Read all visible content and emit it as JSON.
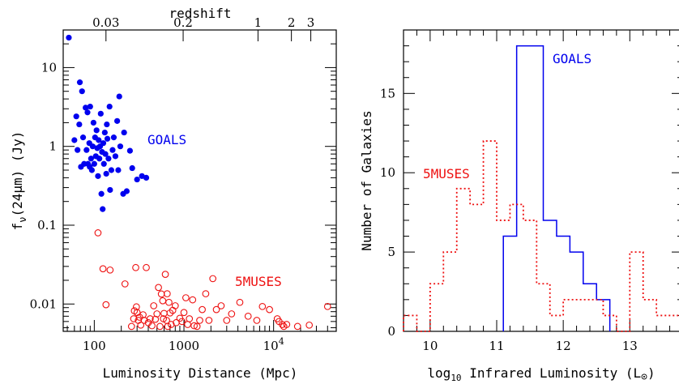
{
  "colors": {
    "goals": "#0000ee",
    "muses": "#ee1111",
    "axis": "#000000"
  },
  "chart_data": [
    {
      "type": "scatter",
      "xlabel": "Luminosity Distance (Mpc)",
      "ylabel": "fν(24μm) (Jy)",
      "ylabel_main": "f",
      "ylabel_sub": "ν",
      "ylabel_rest": "(24μm) (Jy)",
      "toplabel": "redshift",
      "xscale": "log",
      "yscale": "log",
      "xlim": [
        45,
        50000
      ],
      "ylim": [
        0.0045,
        30
      ],
      "x_ticks": [
        {
          "value": 100,
          "label": "100"
        },
        {
          "value": 1000,
          "label": "1000"
        },
        {
          "value": 10000,
          "label": "10",
          "exp": "4"
        }
      ],
      "y_ticks": [
        {
          "value": 0.01,
          "label": "0.01"
        },
        {
          "value": 0.1,
          "label": "0.1"
        },
        {
          "value": 1,
          "label": "1"
        },
        {
          "value": 10,
          "label": "10"
        }
      ],
      "top_ticks": [
        {
          "label": "0.03",
          "distance": 135
        },
        {
          "label": "0.2",
          "distance": 980
        },
        {
          "label": "1",
          "distance": 6700
        },
        {
          "label": "2",
          "distance": 15800
        },
        {
          "label": "3",
          "distance": 26000
        }
      ],
      "series": [
        {
          "name": "GOALS",
          "marker": "filled",
          "points": [
            [
              52,
              24
            ],
            [
              60,
              1.2
            ],
            [
              63,
              2.4
            ],
            [
              65,
              0.9
            ],
            [
              68,
              1.9
            ],
            [
              69,
              6.5
            ],
            [
              71,
              0.55
            ],
            [
              73,
              5.0
            ],
            [
              75,
              1.3
            ],
            [
              77,
              0.6
            ],
            [
              80,
              3.1
            ],
            [
              82,
              0.9
            ],
            [
              84,
              2.7
            ],
            [
              85,
              0.6
            ],
            [
              88,
              1.1
            ],
            [
              89,
              0.55
            ],
            [
              90,
              3.2
            ],
            [
              92,
              0.7
            ],
            [
              94,
              0.5
            ],
            [
              96,
              1.0
            ],
            [
              98,
              2.0
            ],
            [
              100,
              0.6
            ],
            [
              102,
              1.3
            ],
            [
              104,
              0.75
            ],
            [
              106,
              1.6
            ],
            [
              108,
              0.95
            ],
            [
              110,
              0.42
            ],
            [
              112,
              1.2
            ],
            [
              114,
              0.7
            ],
            [
              116,
              1.0
            ],
            [
              118,
              2.6
            ],
            [
              120,
              0.25
            ],
            [
              122,
              0.85
            ],
            [
              124,
              0.16
            ],
            [
              126,
              1.1
            ],
            [
              128,
              0.6
            ],
            [
              131,
              1.5
            ],
            [
              133,
              0.8
            ],
            [
              136,
              0.45
            ],
            [
              138,
              1.9
            ],
            [
              140,
              1.25
            ],
            [
              144,
              0.7
            ],
            [
              148,
              3.2
            ],
            [
              150,
              0.28
            ],
            [
              155,
              0.5
            ],
            [
              160,
              0.9
            ],
            [
              165,
              1.3
            ],
            [
              172,
              0.75
            ],
            [
              180,
              2.1
            ],
            [
              185,
              0.5
            ],
            [
              190,
              4.3
            ],
            [
              195,
              1.0
            ],
            [
              210,
              0.25
            ],
            [
              215,
              1.5
            ],
            [
              230,
              0.27
            ],
            [
              250,
              0.88
            ],
            [
              265,
              0.53
            ],
            [
              300,
              0.38
            ],
            [
              340,
              0.42
            ],
            [
              380,
              0.4
            ]
          ]
        },
        {
          "name": "5MUSES",
          "marker": "open",
          "points": [
            [
              110,
              0.08
            ],
            [
              125,
              0.028
            ],
            [
              135,
              0.0098
            ],
            [
              150,
              0.027
            ],
            [
              220,
              0.018
            ],
            [
              260,
              0.0052
            ],
            [
              275,
              0.0065
            ],
            [
              280,
              0.0082
            ],
            [
              290,
              0.029
            ],
            [
              295,
              0.0092
            ],
            [
              300,
              0.0078
            ],
            [
              310,
              0.0062
            ],
            [
              320,
              0.0068
            ],
            [
              330,
              0.0054
            ],
            [
              350,
              0.0073
            ],
            [
              360,
              0.0062
            ],
            [
              380,
              0.029
            ],
            [
              400,
              0.0058
            ],
            [
              420,
              0.0065
            ],
            [
              440,
              0.0053
            ],
            [
              460,
              0.0095
            ],
            [
              480,
              0.0064
            ],
            [
              500,
              0.0075
            ],
            [
              520,
              0.0162
            ],
            [
              540,
              0.0052
            ],
            [
              560,
              0.0134
            ],
            [
              580,
              0.011
            ],
            [
              590,
              0.0065
            ],
            [
              600,
              0.0076
            ],
            [
              620,
              0.0238
            ],
            [
              640,
              0.0062
            ],
            [
              650,
              0.0135
            ],
            [
              660,
              0.0052
            ],
            [
              680,
              0.0105
            ],
            [
              700,
              0.0077
            ],
            [
              720,
              0.0055
            ],
            [
              750,
              0.0083
            ],
            [
              800,
              0.0095
            ],
            [
              820,
              0.0058
            ],
            [
              900,
              0.0066
            ],
            [
              950,
              0.006
            ],
            [
              1000,
              0.0078
            ],
            [
              1050,
              0.012
            ],
            [
              1100,
              0.0055
            ],
            [
              1150,
              0.0065
            ],
            [
              1250,
              0.0113
            ],
            [
              1300,
              0.0053
            ],
            [
              1400,
              0.0052
            ],
            [
              1500,
              0.0062
            ],
            [
              1600,
              0.0085
            ],
            [
              1750,
              0.0135
            ],
            [
              1900,
              0.0062
            ],
            [
              2100,
              0.021
            ],
            [
              2300,
              0.0085
            ],
            [
              2600,
              0.0095
            ],
            [
              3000,
              0.0062
            ],
            [
              3400,
              0.0075
            ],
            [
              4200,
              0.0105
            ],
            [
              5200,
              0.007
            ],
            [
              6500,
              0.0062
            ],
            [
              7500,
              0.0093
            ],
            [
              9000,
              0.0085
            ],
            [
              11000,
              0.0065
            ],
            [
              11500,
              0.006
            ],
            [
              12500,
              0.0055
            ],
            [
              13000,
              0.0052
            ],
            [
              14000,
              0.0055
            ],
            [
              18500,
              0.0052
            ],
            [
              25000,
              0.0054
            ],
            [
              40000,
              0.0093
            ]
          ]
        }
      ],
      "annotations": [
        {
          "text": "GOALS",
          "series": "GOALS"
        },
        {
          "text": "5MUSES",
          "series": "5MUSES"
        }
      ]
    },
    {
      "type": "histogram",
      "xlabel": "log10 Infrared Luminosity (L⊙)",
      "xlabel_pre": "log",
      "xlabel_sub": "10",
      "xlabel_mid": " Infrared Luminosity (L",
      "xlabel_sym": "⊙",
      "xlabel_post": ")",
      "ylabel": "Number of Galaxies",
      "xlim": [
        9.6,
        13.8
      ],
      "ylim": [
        0,
        19
      ],
      "x_ticks": [
        {
          "value": 10,
          "label": "10"
        },
        {
          "value": 11,
          "label": "11"
        },
        {
          "value": 12,
          "label": "12"
        },
        {
          "value": 13,
          "label": "13"
        }
      ],
      "y_ticks": [
        {
          "value": 0,
          "label": "0"
        },
        {
          "value": 5,
          "label": "5"
        },
        {
          "value": 10,
          "label": "10"
        },
        {
          "value": 15,
          "label": "15"
        }
      ],
      "bin_width": 0.2,
      "series": [
        {
          "name": "GOALS",
          "style": "solid",
          "bins": [
            {
              "left": 11.1,
              "count": 6
            },
            {
              "left": 11.3,
              "count": 18
            },
            {
              "left": 11.5,
              "count": 18
            },
            {
              "left": 11.7,
              "count": 7
            },
            {
              "left": 11.9,
              "count": 6
            },
            {
              "left": 12.1,
              "count": 5
            },
            {
              "left": 12.3,
              "count": 3
            },
            {
              "left": 12.5,
              "count": 2
            }
          ]
        },
        {
          "name": "5MUSES",
          "style": "dotted",
          "bins": [
            {
              "left": 9.6,
              "count": 1
            },
            {
              "left": 9.8,
              "count": 0
            },
            {
              "left": 10.0,
              "count": 3
            },
            {
              "left": 10.2,
              "count": 5
            },
            {
              "left": 10.4,
              "count": 9
            },
            {
              "left": 10.6,
              "count": 8
            },
            {
              "left": 10.8,
              "count": 12
            },
            {
              "left": 11.0,
              "count": 7
            },
            {
              "left": 11.2,
              "count": 8
            },
            {
              "left": 11.4,
              "count": 7
            },
            {
              "left": 11.6,
              "count": 3
            },
            {
              "left": 11.8,
              "count": 1
            },
            {
              "left": 12.0,
              "count": 2
            },
            {
              "left": 12.2,
              "count": 2
            },
            {
              "left": 12.4,
              "count": 2
            },
            {
              "left": 12.6,
              "count": 1
            },
            {
              "left": 12.8,
              "count": 0
            },
            {
              "left": 13.0,
              "count": 5
            },
            {
              "left": 13.2,
              "count": 2
            },
            {
              "left": 13.4,
              "count": 1
            },
            {
              "left": 13.6,
              "count": 1
            }
          ]
        }
      ],
      "annotations": [
        {
          "text": "GOALS",
          "series": "GOALS"
        },
        {
          "text": "5MUSES",
          "series": "5MUSES"
        }
      ]
    }
  ]
}
